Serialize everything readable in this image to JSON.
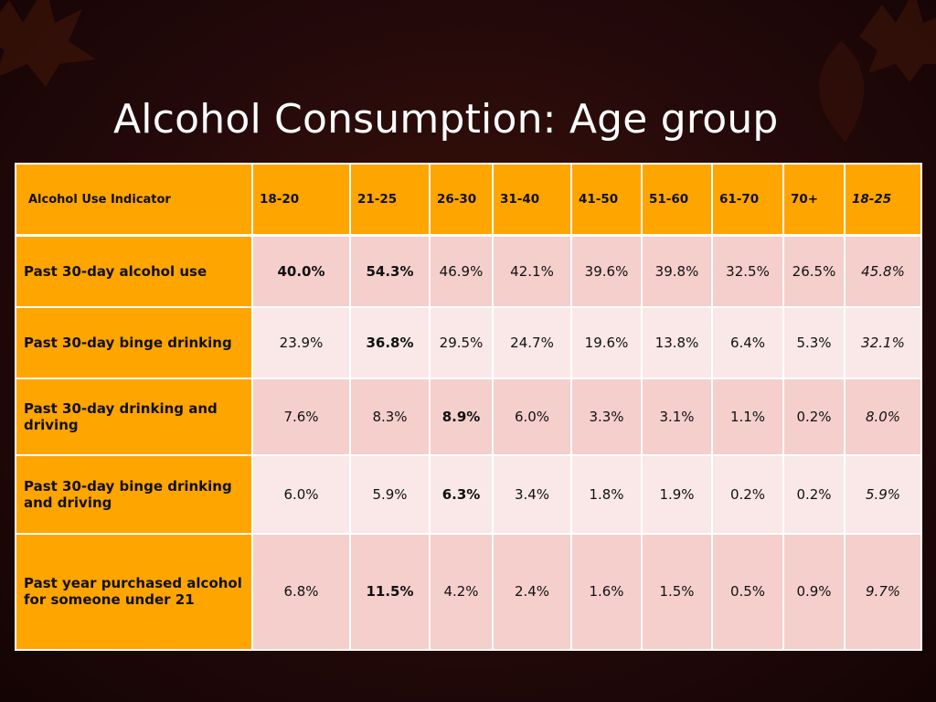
{
  "title": "Alcohol Consumption:  Age group",
  "table": {
    "corner_header": "Alcohol Use Indicator",
    "columns": [
      "18-20",
      "21-25",
      "26-30",
      "31-40",
      "41-50",
      "51-60",
      "61-70",
      "70+",
      "18-25"
    ],
    "rows": [
      {
        "label": "Past 30-day alcohol use",
        "cells": [
          "40.0%",
          "54.3%",
          "46.9%",
          "42.1%",
          "39.6%",
          "39.8%",
          "32.5%",
          "26.5%",
          "45.8%"
        ]
      },
      {
        "label": "Past 30-day binge drinking",
        "cells": [
          "23.9%",
          "36.8%",
          "29.5%",
          "24.7%",
          "19.6%",
          "13.8%",
          "6.4%",
          "5.3%",
          "32.1%"
        ]
      },
      {
        "label": "Past 30-day drinking and driving",
        "cells": [
          "7.6%",
          "8.3%",
          "8.9%",
          "6.0%",
          "3.3%",
          "3.1%",
          "1.1%",
          "0.2%",
          "8.0%"
        ]
      },
      {
        "label": "Past 30-day binge drinking and driving",
        "cells": [
          "6.0%",
          "5.9%",
          "6.3%",
          "3.4%",
          "1.8%",
          "1.9%",
          "0.2%",
          "0.2%",
          "5.9%"
        ]
      },
      {
        "label": "Past year purchased alcohol for someone under 21",
        "cells": [
          "6.8%",
          "11.5%",
          "4.2%",
          "2.4%",
          "1.6%",
          "1.5%",
          "0.5%",
          "0.9%",
          "9.7%"
        ]
      }
    ]
  },
  "colors": {
    "background": "#24090a",
    "header_fill": "#ffa500",
    "row_fill_a": "#f4cfcc",
    "row_fill_b": "#f9e8e7",
    "title_text": "#ffffff"
  }
}
